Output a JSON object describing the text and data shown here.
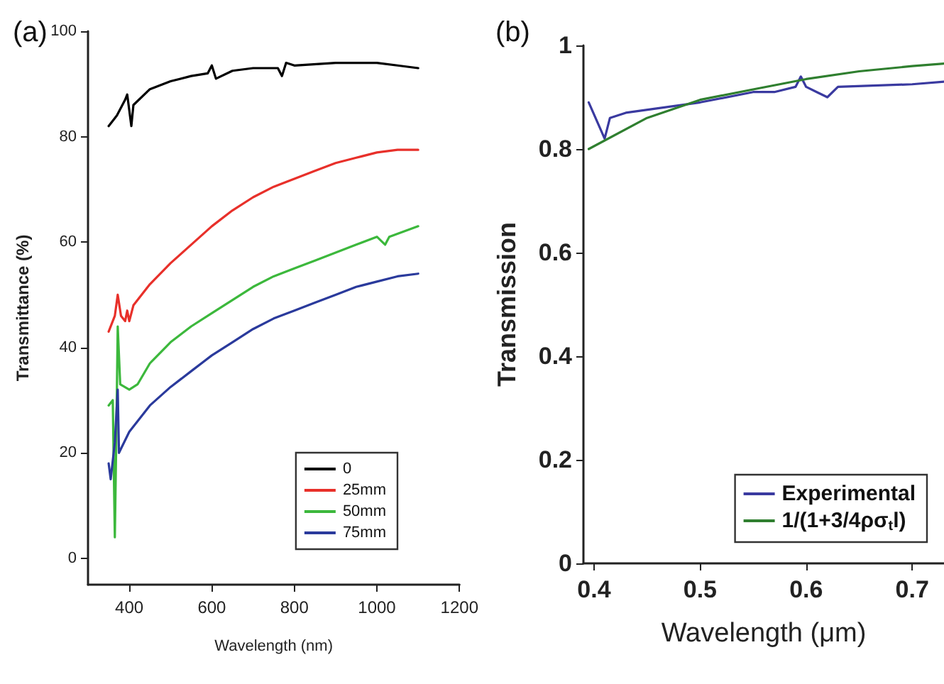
{
  "chart_data": [
    {
      "type": "line",
      "title": "(a)",
      "xlabel": "Wavelength (nm)",
      "ylabel": "Transmittance (%)",
      "xlim": [
        300,
        1200
      ],
      "xticks": [
        400,
        600,
        800,
        1000,
        1200
      ],
      "ylim": [
        -5,
        100
      ],
      "yticks": [
        0,
        20,
        40,
        60,
        80,
        100
      ],
      "grid": false,
      "legend": "bottom right",
      "marker": "none",
      "line_style": "solid",
      "series": [
        {
          "name": "0",
          "color": "#000000",
          "x": [
            350,
            370,
            390,
            395,
            405,
            410,
            450,
            500,
            550,
            590,
            600,
            610,
            650,
            700,
            760,
            770,
            780,
            800,
            900,
            1000,
            1050,
            1100
          ],
          "values": [
            82,
            84,
            87,
            88,
            82,
            86,
            89,
            90.5,
            91.5,
            92,
            93.5,
            91,
            92.5,
            93,
            93,
            91.5,
            94,
            93.5,
            94,
            94,
            93.5,
            93
          ]
        },
        {
          "name": "25mm",
          "color": "#e8302a",
          "x": [
            350,
            365,
            372,
            380,
            390,
            395,
            400,
            410,
            450,
            500,
            550,
            600,
            650,
            700,
            750,
            800,
            850,
            900,
            950,
            1000,
            1050,
            1100
          ],
          "values": [
            43,
            46,
            50,
            46,
            45,
            47,
            45,
            48,
            52,
            56,
            59.5,
            63,
            66,
            68.5,
            70.5,
            72,
            73.5,
            75,
            76,
            77,
            77.5,
            77.5
          ]
        },
        {
          "name": "50mm",
          "color": "#3cb83c",
          "x": [
            350,
            360,
            365,
            368,
            372,
            378,
            400,
            420,
            450,
            500,
            550,
            600,
            650,
            700,
            750,
            800,
            850,
            900,
            950,
            1000,
            1020,
            1030,
            1100
          ],
          "values": [
            29,
            30,
            4,
            20,
            44,
            33,
            32,
            33,
            37,
            41,
            44,
            46.5,
            49,
            51.5,
            53.5,
            55,
            56.5,
            58,
            59.5,
            61,
            59.5,
            61,
            63
          ]
        },
        {
          "name": "75mm",
          "color": "#2a3a9c",
          "x": [
            350,
            355,
            365,
            372,
            375,
            400,
            450,
            500,
            550,
            600,
            650,
            700,
            750,
            800,
            850,
            900,
            950,
            1000,
            1050,
            1100
          ],
          "values": [
            18,
            15,
            22,
            32,
            20,
            24,
            29,
            32.5,
            35.5,
            38.5,
            41,
            43.5,
            45.5,
            47,
            48.5,
            50,
            51.5,
            52.5,
            53.5,
            54
          ]
        }
      ]
    },
    {
      "type": "line",
      "title": "(b)",
      "xlabel": "Wavelength (μm)",
      "ylabel": "Transmission",
      "xlim": [
        0.39,
        0.73
      ],
      "xticks": [
        0.4,
        0.5,
        0.6,
        0.7
      ],
      "ylim": [
        0,
        1
      ],
      "yticks": [
        0,
        0.2,
        0.4,
        0.6,
        0.8,
        1
      ],
      "grid": false,
      "legend": "bottom right",
      "marker": "none",
      "line_style": "solid",
      "series": [
        {
          "name": "Experimental",
          "color": "#3a3aa0",
          "x": [
            0.395,
            0.41,
            0.415,
            0.43,
            0.5,
            0.55,
            0.57,
            0.59,
            0.595,
            0.6,
            0.61,
            0.62,
            0.63,
            0.7,
            0.73
          ],
          "values": [
            0.89,
            0.82,
            0.86,
            0.87,
            0.89,
            0.91,
            0.91,
            0.92,
            0.94,
            0.92,
            0.91,
            0.9,
            0.92,
            0.925,
            0.93
          ]
        },
        {
          "name": "1/(1+3/4ρσ$_{t}$l)",
          "color": "#2f7f2f",
          "x": [
            0.395,
            0.45,
            0.5,
            0.55,
            0.6,
            0.65,
            0.7,
            0.73
          ],
          "values": [
            0.8,
            0.86,
            0.895,
            0.915,
            0.935,
            0.95,
            0.96,
            0.965
          ]
        }
      ]
    }
  ]
}
